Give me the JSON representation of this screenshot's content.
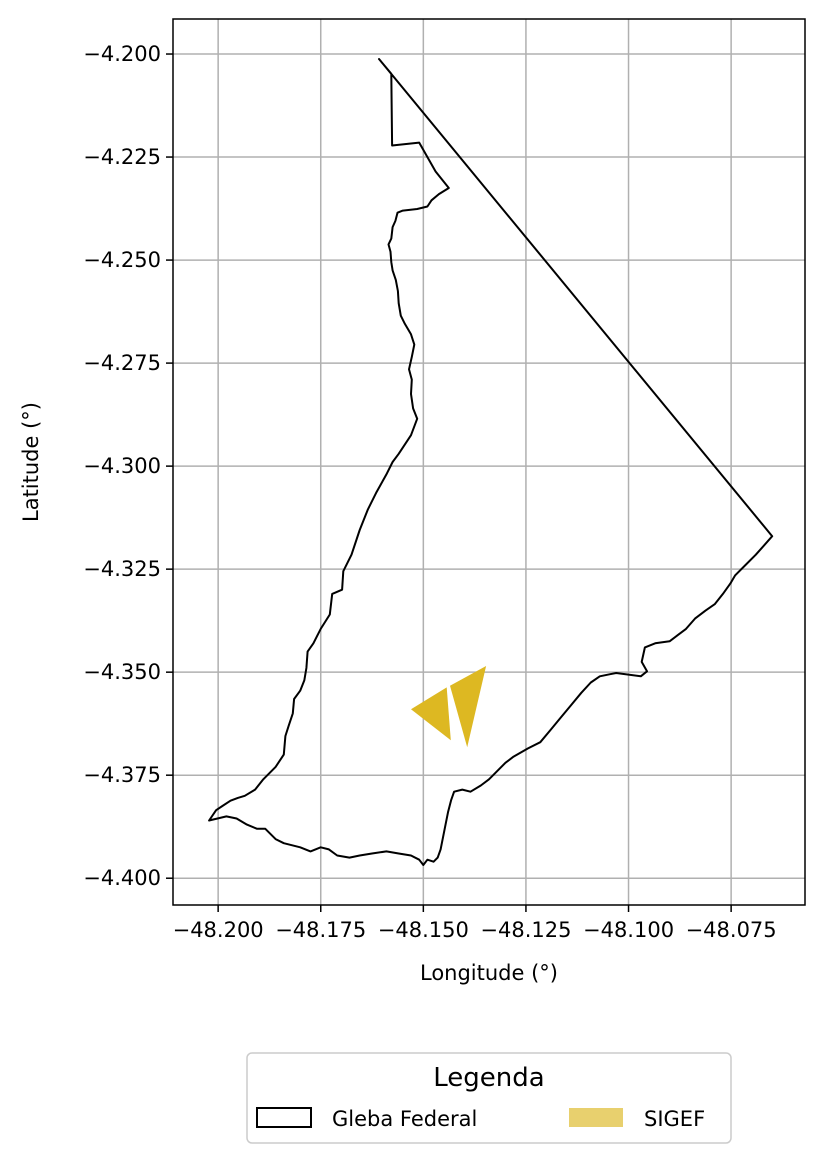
{
  "chart_data": {
    "type": "map",
    "title": "",
    "xlabel": "Longitude (°)",
    "ylabel": "Latitude (°)",
    "xlim": [
      -48.211,
      -48.057
    ],
    "ylim": [
      -4.4065,
      -4.1915
    ],
    "grid": true,
    "x_ticks": [
      -48.2,
      -48.175,
      -48.15,
      -48.125,
      -48.1,
      -48.075
    ],
    "x_tick_labels": [
      "−48.200",
      "−48.175",
      "−48.150",
      "−48.125",
      "−48.100",
      "−48.075"
    ],
    "y_ticks": [
      -4.2,
      -4.225,
      -4.25,
      -4.275,
      -4.3,
      -4.325,
      -4.35,
      -4.375,
      -4.4
    ],
    "y_tick_labels": [
      "−4.200",
      "−4.225",
      "−4.250",
      "−4.275",
      "−4.300",
      "−4.325",
      "−4.350",
      "−4.375",
      "−4.400"
    ],
    "legend": {
      "title": "Legenda",
      "placement": "bottom-center",
      "entries": [
        {
          "label": "Gleba Federal",
          "style": "outline",
          "edge_color": "#000000"
        },
        {
          "label": "SIGEF",
          "style": "fill",
          "fill_color": "#e8d06e"
        }
      ]
    },
    "series": [
      {
        "name": "Gleba Federal",
        "type": "polygon",
        "edge_color": "#000000",
        "fill_color": "none",
        "coordinates": [
          [
            -48.1608,
            -4.2012
          ],
          [
            -48.1578,
            -4.2048
          ],
          [
            -48.1576,
            -4.2222
          ],
          [
            -48.151,
            -4.2215
          ],
          [
            -48.147,
            -4.2285
          ],
          [
            -48.1438,
            -4.2325
          ],
          [
            -48.1462,
            -4.234
          ],
          [
            -48.148,
            -4.2355
          ],
          [
            -48.149,
            -4.237
          ],
          [
            -48.1515,
            -4.2376
          ],
          [
            -48.155,
            -4.238
          ],
          [
            -48.1563,
            -4.2385
          ],
          [
            -48.1568,
            -4.2405
          ],
          [
            -48.1575,
            -4.242
          ],
          [
            -48.1578,
            -4.2448
          ],
          [
            -48.1585,
            -4.2462
          ],
          [
            -48.158,
            -4.248
          ],
          [
            -48.1578,
            -4.2505
          ],
          [
            -48.1575,
            -4.2525
          ],
          [
            -48.1567,
            -4.2548
          ],
          [
            -48.1562,
            -4.2575
          ],
          [
            -48.156,
            -4.2605
          ],
          [
            -48.1555,
            -4.2635
          ],
          [
            -48.1545,
            -4.2655
          ],
          [
            -48.153,
            -4.268
          ],
          [
            -48.1522,
            -4.2705
          ],
          [
            -48.1528,
            -4.2735
          ],
          [
            -48.1535,
            -4.2765
          ],
          [
            -48.1528,
            -4.279
          ],
          [
            -48.153,
            -4.2825
          ],
          [
            -48.1525,
            -4.286
          ],
          [
            -48.1515,
            -4.2885
          ],
          [
            -48.153,
            -4.2925
          ],
          [
            -48.156,
            -4.297
          ],
          [
            -48.1575,
            -4.299
          ],
          [
            -48.159,
            -4.302
          ],
          [
            -48.1615,
            -4.3065
          ],
          [
            -48.1635,
            -4.3105
          ],
          [
            -48.1655,
            -4.3155
          ],
          [
            -48.1675,
            -4.3215
          ],
          [
            -48.1695,
            -4.3255
          ],
          [
            -48.1698,
            -4.33
          ],
          [
            -48.1722,
            -4.331
          ],
          [
            -48.1728,
            -4.336
          ],
          [
            -48.175,
            -4.3395
          ],
          [
            -48.1768,
            -4.343
          ],
          [
            -48.1782,
            -4.345
          ],
          [
            -48.1785,
            -4.349
          ],
          [
            -48.179,
            -4.352
          ],
          [
            -48.18,
            -4.3545
          ],
          [
            -48.1815,
            -4.3565
          ],
          [
            -48.1818,
            -4.36
          ],
          [
            -48.1828,
            -4.363
          ],
          [
            -48.1836,
            -4.3655
          ],
          [
            -48.184,
            -4.37
          ],
          [
            -48.186,
            -4.373
          ],
          [
            -48.189,
            -4.376
          ],
          [
            -48.191,
            -4.3785
          ],
          [
            -48.1935,
            -4.38
          ],
          [
            -48.1952,
            -4.3805
          ],
          [
            -48.197,
            -4.3812
          ],
          [
            -48.199,
            -4.3825
          ],
          [
            -48.2005,
            -4.3835
          ],
          [
            -48.2022,
            -4.386
          ],
          [
            -48.198,
            -4.385
          ],
          [
            -48.1955,
            -4.3855
          ],
          [
            -48.193,
            -4.387
          ],
          [
            -48.1905,
            -4.388
          ],
          [
            -48.1885,
            -4.388
          ],
          [
            -48.186,
            -4.3905
          ],
          [
            -48.184,
            -4.3915
          ],
          [
            -48.18,
            -4.3925
          ],
          [
            -48.1775,
            -4.3935
          ],
          [
            -48.175,
            -4.3925
          ],
          [
            -48.173,
            -4.393
          ],
          [
            -48.171,
            -4.3945
          ],
          [
            -48.168,
            -4.395
          ],
          [
            -48.1655,
            -4.3945
          ],
          [
            -48.1625,
            -4.394
          ],
          [
            -48.159,
            -4.3935
          ],
          [
            -48.156,
            -4.394
          ],
          [
            -48.153,
            -4.3945
          ],
          [
            -48.151,
            -4.3955
          ],
          [
            -48.15,
            -4.3968
          ],
          [
            -48.149,
            -4.3955
          ],
          [
            -48.1475,
            -4.396
          ],
          [
            -48.1465,
            -4.395
          ],
          [
            -48.1458,
            -4.393
          ],
          [
            -48.1448,
            -4.388
          ],
          [
            -48.144,
            -4.384
          ],
          [
            -48.1432,
            -4.381
          ],
          [
            -48.1425,
            -4.379
          ],
          [
            -48.1405,
            -4.3785
          ],
          [
            -48.1385,
            -4.379
          ],
          [
            -48.136,
            -4.3775
          ],
          [
            -48.134,
            -4.376
          ],
          [
            -48.132,
            -4.374
          ],
          [
            -48.13,
            -4.372
          ],
          [
            -48.128,
            -4.3705
          ],
          [
            -48.1245,
            -4.3685
          ],
          [
            -48.1215,
            -4.367
          ],
          [
            -48.119,
            -4.364
          ],
          [
            -48.1165,
            -4.361
          ],
          [
            -48.114,
            -4.358
          ],
          [
            -48.1115,
            -4.355
          ],
          [
            -48.1092,
            -4.3525
          ],
          [
            -48.107,
            -4.351
          ],
          [
            -48.1045,
            -4.3505
          ],
          [
            -48.103,
            -4.3502
          ],
          [
            -48.097,
            -4.351
          ],
          [
            -48.0955,
            -4.3498
          ],
          [
            -48.0968,
            -4.3475
          ],
          [
            -48.096,
            -4.344
          ],
          [
            -48.0935,
            -4.343
          ],
          [
            -48.09,
            -4.3425
          ],
          [
            -48.088,
            -4.341
          ],
          [
            -48.086,
            -4.3395
          ],
          [
            -48.0838,
            -4.337
          ],
          [
            -48.0812,
            -4.335
          ],
          [
            -48.079,
            -4.3335
          ],
          [
            -48.077,
            -4.331
          ],
          [
            -48.0752,
            -4.3285
          ],
          [
            -48.074,
            -4.3265
          ],
          [
            -48.0715,
            -4.324
          ],
          [
            -48.069,
            -4.3215
          ],
          [
            -48.065,
            -4.317
          ],
          [
            -48.1608,
            -4.2012
          ]
        ]
      },
      {
        "name": "SIGEF",
        "type": "polygons",
        "fill_color": "#ddb822",
        "shapes": [
          [
            [
              -48.153,
              -4.359
            ],
            [
              -48.1443,
              -4.3537
            ],
            [
              -48.1433,
              -4.3665
            ]
          ],
          [
            [
              -48.1435,
              -4.3533
            ],
            [
              -48.1347,
              -4.3485
            ],
            [
              -48.1393,
              -4.3682
            ]
          ]
        ]
      }
    ]
  }
}
